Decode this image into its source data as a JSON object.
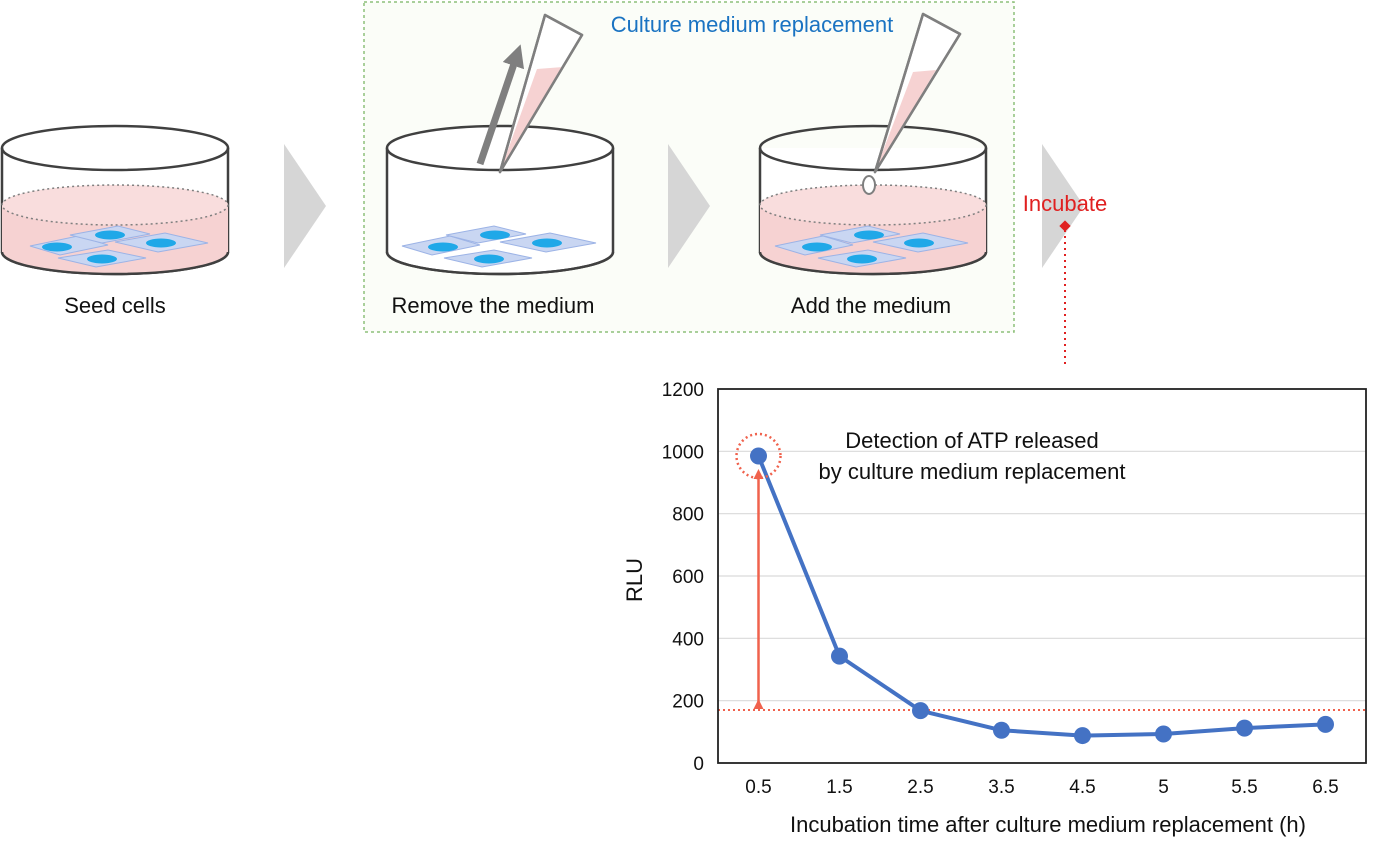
{
  "workflow": {
    "steps": [
      {
        "label": "Seed cells"
      },
      {
        "label": "Remove the medium"
      },
      {
        "label": "Add the medium"
      }
    ],
    "group_label": "Culture medium replacement",
    "incubate_label": "Incubate",
    "colors": {
      "group_title": "#1A73C2",
      "incubate": "#E02020",
      "group_border": "#8DC07A",
      "medium": "#F6D2D2",
      "cells": "#C9D6F2",
      "nucleus": "#1FA8E8",
      "arrow": "#D6D6D6"
    }
  },
  "chart_data": {
    "type": "line",
    "categories": [
      "0.5",
      "1.5",
      "2.5",
      "3.5",
      "4.5",
      "5",
      "5.5",
      "6.5"
    ],
    "series": [
      {
        "values": [
          985,
          343,
          168,
          105,
          88,
          93,
          112,
          124
        ]
      }
    ],
    "baseline": 170,
    "xlabel": "Incubation time after culture medium replacement (h)",
    "ylabel": "RLU",
    "ylim": [
      0,
      1200
    ],
    "yticks": [
      "0",
      "200",
      "400",
      "600",
      "800",
      "1000",
      "1200"
    ],
    "annotation": [
      "Detection of ATP released",
      "by culture medium replacement"
    ],
    "grid": true,
    "colors": {
      "line": "#4472C4",
      "highlight": "#F0624D",
      "grid": "#D9D9D9"
    }
  }
}
